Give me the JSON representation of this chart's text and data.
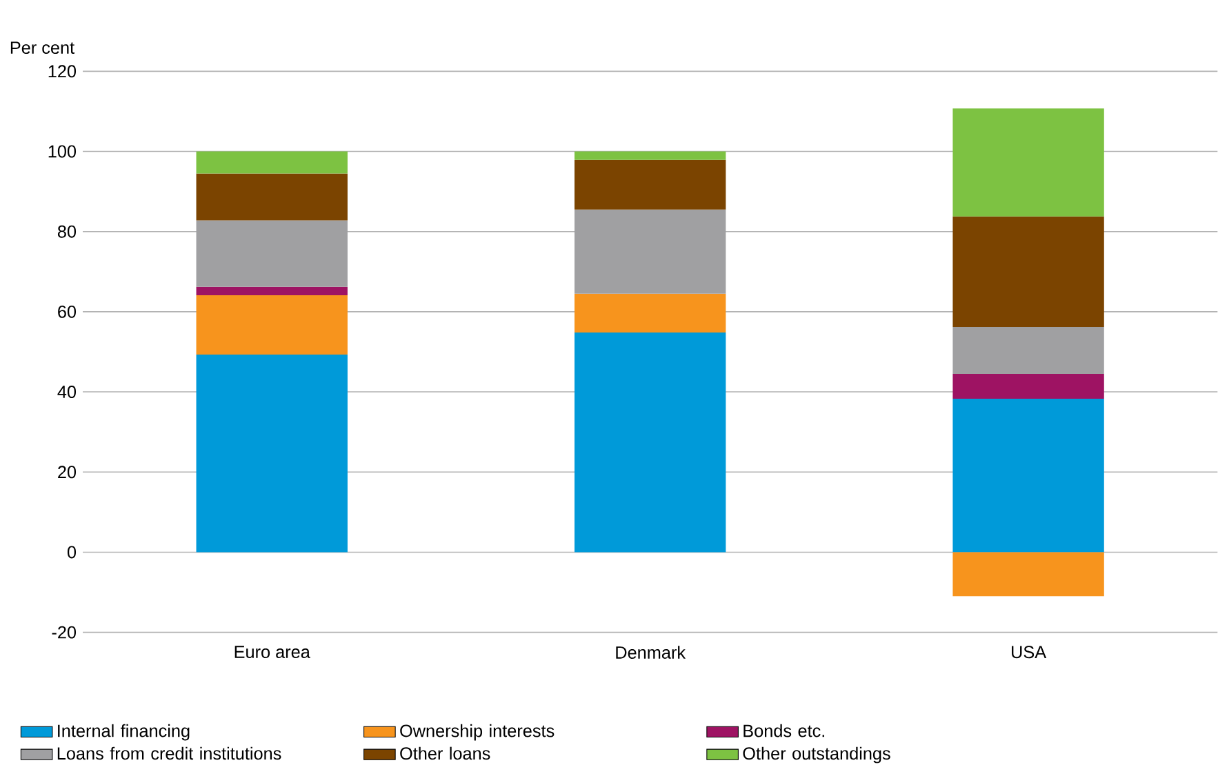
{
  "chart_data": {
    "type": "bar",
    "stacked": true,
    "ylabel": "Per cent",
    "categories": [
      "Euro area",
      "Denmark",
      "USA"
    ],
    "ylim": [
      -20,
      120
    ],
    "yticks": [
      -20,
      0,
      20,
      40,
      60,
      80,
      100,
      120
    ],
    "grid": "y",
    "legend": "bottom",
    "series": [
      {
        "name": "Internal financing",
        "color": "#009ad9",
        "values": [
          49.3,
          54.8,
          38.3
        ]
      },
      {
        "name": "Ownership interests",
        "color": "#f7941d",
        "values": [
          14.8,
          9.7,
          -11
        ]
      },
      {
        "name": "Bonds etc.",
        "color": "#9e1363",
        "values": [
          2.1,
          null,
          6.2
        ]
      },
      {
        "name": "Loans from credit institutions",
        "color": "#a0a0a2",
        "values": [
          16.6,
          21,
          11.7
        ]
      },
      {
        "name": "Other loans",
        "color": "#7b4400",
        "values": [
          11.7,
          12.4,
          27.6
        ]
      },
      {
        "name": "Other outstandings",
        "color": "#7dc242",
        "values": [
          5.5,
          2.1,
          26.9
        ]
      }
    ]
  }
}
